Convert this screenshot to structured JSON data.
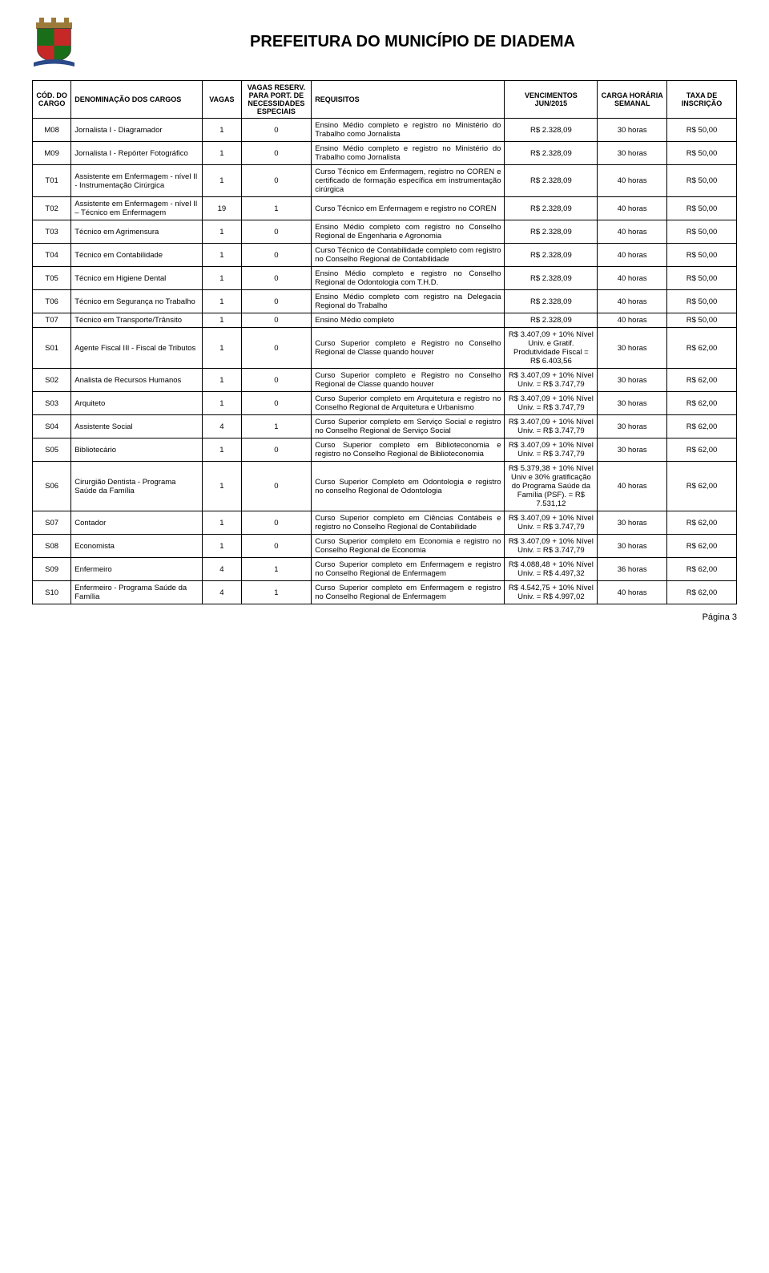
{
  "header": {
    "title": "PREFEITURA DO MUNICÍPIO DE DIADEMA"
  },
  "table": {
    "headers": {
      "cod": "CÓD. DO CARGO",
      "denom": "DENOMINAÇÃO DOS CARGOS",
      "vagas": "VAGAS",
      "vagasesp": "VAGAS RESERV. PARA PORT. DE NECESSIDADES ESPECIAIS",
      "req": "REQUISITOS",
      "venc": "VENCIMENTOS JUN/2015",
      "carga": "CARGA HORÁRIA SEMANAL",
      "taxa": "TAXA DE INSCRIÇÃO"
    },
    "rows": [
      {
        "cod": "M08",
        "denom": "Jornalista I - Diagramador",
        "vagas": "1",
        "vagasesp": "0",
        "req": "Ensino Médio completo e registro no Ministério do Trabalho como Jornalista",
        "venc": "R$ 2.328,09",
        "carga": "30 horas",
        "taxa": "R$ 50,00"
      },
      {
        "cod": "M09",
        "denom": "Jornalista I - Repórter Fotográfico",
        "vagas": "1",
        "vagasesp": "0",
        "req": "Ensino Médio completo e registro no Ministério do Trabalho como Jornalista",
        "venc": "R$ 2.328,09",
        "carga": "30 horas",
        "taxa": "R$ 50,00"
      },
      {
        "cod": "T01",
        "denom": "Assistente em Enfermagem - nível II - Instrumentação Cirúrgica",
        "vagas": "1",
        "vagasesp": "0",
        "req": "Curso Técnico em Enfermagem, registro no COREN e certificado de formação específica em instrumentação cirúrgica",
        "venc": "R$ 2.328,09",
        "carga": "40 horas",
        "taxa": "R$ 50,00"
      },
      {
        "cod": "T02",
        "denom": "Assistente em Enfermagem - nível II – Técnico em Enfermagem",
        "vagas": "19",
        "vagasesp": "1",
        "req": "Curso Técnico em Enfermagem e registro no COREN",
        "venc": "R$ 2.328,09",
        "carga": "40 horas",
        "taxa": "R$ 50,00"
      },
      {
        "cod": "T03",
        "denom": "Técnico em Agrimensura",
        "vagas": "1",
        "vagasesp": "0",
        "req": "Ensino Médio completo com registro no Conselho Regional de Engenharia e Agronomia",
        "venc": "R$ 2.328,09",
        "carga": "40 horas",
        "taxa": "R$ 50,00"
      },
      {
        "cod": "T04",
        "denom": "Técnico em Contabilidade",
        "vagas": "1",
        "vagasesp": "0",
        "req": "Curso Técnico de Contabilidade completo com registro no Conselho Regional de Contabilidade",
        "venc": "R$ 2.328,09",
        "carga": "40 horas",
        "taxa": "R$ 50,00"
      },
      {
        "cod": "T05",
        "denom": "Técnico em Higiene Dental",
        "vagas": "1",
        "vagasesp": "0",
        "req": "Ensino Médio completo e registro no Conselho Regional de Odontologia com T.H.D.",
        "venc": "R$ 2.328,09",
        "carga": "40 horas",
        "taxa": "R$ 50,00"
      },
      {
        "cod": "T06",
        "denom": "Técnico em Segurança no Trabalho",
        "vagas": "1",
        "vagasesp": "0",
        "req": "Ensino Médio completo com registro na Delegacia Regional do Trabalho",
        "venc": "R$ 2.328,09",
        "carga": "40 horas",
        "taxa": "R$ 50,00"
      },
      {
        "cod": "T07",
        "denom": "Técnico em Transporte/Trânsito",
        "vagas": "1",
        "vagasesp": "0",
        "req": "Ensino Médio completo",
        "venc": "R$ 2.328,09",
        "carga": "40 horas",
        "taxa": "R$ 50,00"
      },
      {
        "cod": "S01",
        "denom": "Agente Fiscal III - Fiscal de Tributos",
        "vagas": "1",
        "vagasesp": "0",
        "req": "Curso Superior completo e Registro no Conselho Regional de Classe quando houver",
        "venc": "R$ 3.407,09 + 10% Nível Univ. e Gratif. Produtividade Fiscal = R$ 6.403,56",
        "carga": "30 horas",
        "taxa": "R$ 62,00"
      },
      {
        "cod": "S02",
        "denom": "Analista de Recursos Humanos",
        "vagas": "1",
        "vagasesp": "0",
        "req": "Curso Superior completo e Registro no Conselho Regional de Classe quando houver",
        "venc": "R$ 3.407,09 + 10% Nível Univ. = R$ 3.747,79",
        "carga": "30 horas",
        "taxa": "R$ 62,00"
      },
      {
        "cod": "S03",
        "denom": "Arquiteto",
        "vagas": "1",
        "vagasesp": "0",
        "req": "Curso Superior completo em Arquitetura e registro no Conselho Regional de Arquitetura e Urbanismo",
        "venc": "R$ 3.407,09 + 10% Nível Univ. = R$ 3.747,79",
        "carga": "30 horas",
        "taxa": "R$ 62,00"
      },
      {
        "cod": "S04",
        "denom": "Assistente Social",
        "vagas": "4",
        "vagasesp": "1",
        "req": "Curso Superior completo em Serviço Social e registro no Conselho Regional de Serviço Social",
        "venc": "R$ 3.407,09 + 10% Nível Univ. = R$ 3.747,79",
        "carga": "30 horas",
        "taxa": "R$ 62,00"
      },
      {
        "cod": "S05",
        "denom": "Bibliotecário",
        "vagas": "1",
        "vagasesp": "0",
        "req": "Curso Superior completo em Biblioteconomia e registro no Conselho Regional de Biblioteconomia",
        "venc": "R$ 3.407,09 + 10% Nível Univ. = R$ 3.747,79",
        "carga": "30 horas",
        "taxa": "R$ 62,00"
      },
      {
        "cod": "S06",
        "denom": "Cirurgião Dentista - Programa Saúde da Família",
        "vagas": "1",
        "vagasesp": "0",
        "req": "Curso Superior Completo em Odontologia e registro no conselho Regional de Odontologia",
        "venc": "R$ 5.379,38 + 10% Nível Univ e 30% gratificação do Programa Saúde da Família (PSF). = R$ 7.531,12",
        "carga": "40 horas",
        "taxa": "R$ 62,00"
      },
      {
        "cod": "S07",
        "denom": "Contador",
        "vagas": "1",
        "vagasesp": "0",
        "req": "Curso Superior completo em Ciências Contábeis e registro no Conselho Regional de Contabilidade",
        "venc": "R$ 3.407,09 + 10% Nível Univ. = R$ 3.747,79",
        "carga": "30 horas",
        "taxa": "R$ 62,00"
      },
      {
        "cod": "S08",
        "denom": "Economista",
        "vagas": "1",
        "vagasesp": "0",
        "req": "Curso Superior completo em Economia e registro no Conselho Regional de Economia",
        "venc": "R$ 3.407,09 + 10% Nível Univ. = R$ 3.747,79",
        "carga": "30 horas",
        "taxa": "R$ 62,00"
      },
      {
        "cod": "S09",
        "denom": "Enfermeiro",
        "vagas": "4",
        "vagasesp": "1",
        "req": "Curso Superior completo em Enfermagem e registro no Conselho Regional de Enfermagem",
        "venc": "R$ 4.088,48 + 10% Nível Univ. = R$ 4.497,32",
        "carga": "36 horas",
        "taxa": "R$ 62,00"
      },
      {
        "cod": "S10",
        "denom": "Enfermeiro - Programa Saúde da Família",
        "vagas": "4",
        "vagasesp": "1",
        "req": "Curso Superior completo em Enfermagem e registro no Conselho Regional de Enfermagem",
        "venc": "R$ 4.542,75 + 10% Nível Univ. = R$ 4.997,02",
        "carga": "40 horas",
        "taxa": "R$ 62,00"
      }
    ]
  },
  "footer": {
    "page": "Página 3"
  },
  "style": {
    "font_family": "Arial, sans-serif",
    "title_fontsize": 20,
    "table_fontsize": 9.5,
    "header_fontsize": 9,
    "border_color": "#000000",
    "background_color": "#ffffff",
    "text_color": "#000000"
  }
}
